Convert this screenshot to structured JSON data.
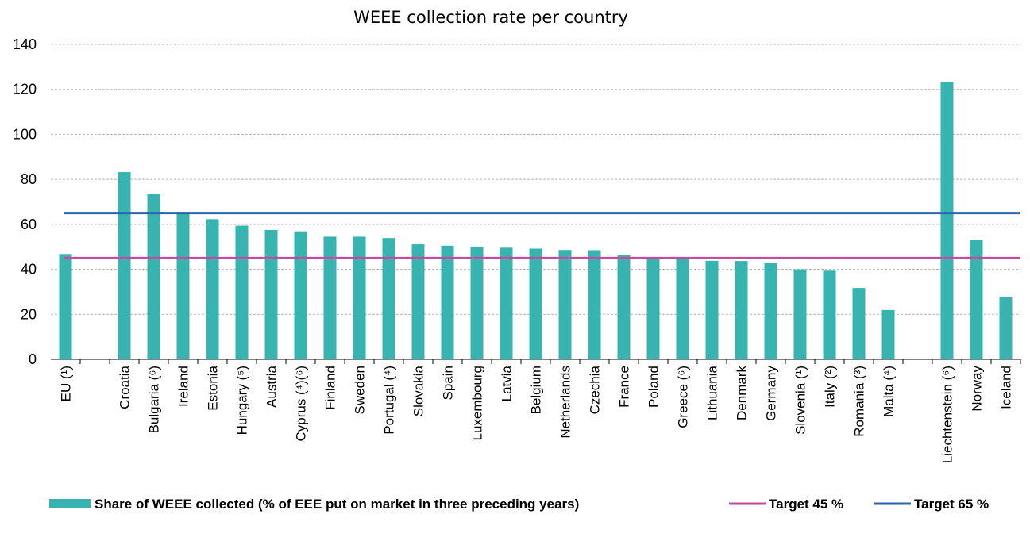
{
  "chart_data": {
    "type": "bar",
    "title": "WEEE collection rate per country",
    "xlabel": "",
    "ylabel": "",
    "ylim": [
      0,
      140
    ],
    "yticks": [
      0,
      20,
      40,
      60,
      80,
      100,
      120,
      140
    ],
    "grid": true,
    "legend_position": "bottom",
    "categories": [
      "EU (¹)",
      "",
      "Croatia",
      "Bulgaria (⁶)",
      "Ireland",
      "Estonia",
      "Hungary (⁵)",
      "Austria",
      "Cyprus (⁴)(⁶)",
      "Finland",
      "Sweden",
      "Portugal (⁴)",
      "Slovakia",
      "Spain",
      "Luxembourg",
      "Latvia",
      "Belgium",
      "Netherlands",
      "Czechia",
      "France",
      "Poland",
      "Greece (⁶)",
      "Lithuania",
      "Denmark",
      "Germany",
      "Slovenia (¹)",
      "Italy (²)",
      "Romania (³)",
      "Malta (⁴)",
      "",
      "Liechtenstein (⁶)",
      "Norway",
      "Iceland"
    ],
    "series": [
      {
        "name": "Share of WEEE collected (% of EEE put on market in three preceding years)",
        "type": "bar",
        "color": "#37b3b0",
        "values": [
          46.8,
          null,
          83.2,
          73.4,
          65.4,
          62.3,
          59.4,
          57.5,
          56.9,
          54.5,
          54.5,
          53.9,
          51.1,
          50.5,
          50.1,
          49.6,
          49.2,
          48.6,
          48.5,
          46.2,
          45.1,
          44.9,
          43.8,
          43.7,
          42.9,
          40.0,
          39.4,
          31.7,
          21.9,
          null,
          123.1,
          53.0,
          27.8
        ]
      },
      {
        "name": "Target 45 %",
        "type": "line",
        "color": "#c64b9e",
        "value": 45
      },
      {
        "name": "Target 65 %",
        "type": "line",
        "color": "#2b63ad",
        "value": 65
      }
    ]
  }
}
